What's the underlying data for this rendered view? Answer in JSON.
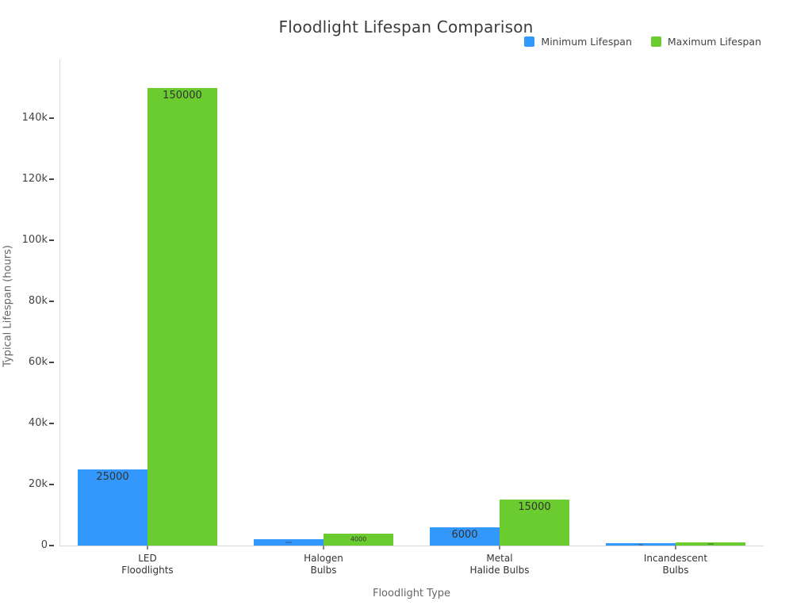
{
  "title": "Floodlight Lifespan Comparison",
  "chart_data": {
    "type": "bar",
    "title": "Floodlight Lifespan Comparison",
    "xlabel": "Floodlight Type",
    "ylabel": "Typical Lifespan (hours)",
    "categories": [
      "LED\nFloodlights",
      "Halogen\nBulbs",
      "Metal\nHalide Bulbs",
      "Incandescent\nBulbs"
    ],
    "series": [
      {
        "name": "Minimum Lifespan",
        "color": "#3398FB",
        "values": [
          25000,
          2000,
          6000,
          750
        ],
        "labels": [
          "25000",
          "2000",
          "6000",
          "750"
        ]
      },
      {
        "name": "Maximum Lifespan",
        "color": "#6BCC30",
        "values": [
          150000,
          4000,
          15000,
          1000
        ],
        "labels": [
          "150000",
          "4000",
          "15000",
          "1000"
        ]
      }
    ],
    "ylim": [
      0,
      160000
    ],
    "yticks": [
      {
        "v": 0,
        "label": "0"
      },
      {
        "v": 20000,
        "label": "20k"
      },
      {
        "v": 40000,
        "label": "40k"
      },
      {
        "v": 60000,
        "label": "60k"
      },
      {
        "v": 80000,
        "label": "80k"
      },
      {
        "v": 100000,
        "label": "100k"
      },
      {
        "v": 120000,
        "label": "120k"
      },
      {
        "v": 140000,
        "label": "140k"
      }
    ],
    "grid": false,
    "legend_position": "top-right",
    "bar_label_position": "inside-top"
  },
  "colors": {
    "axis_line": "#d9d9d9",
    "tick_text": "#444444",
    "x_tick_mark": "#888888",
    "category_text": "#333333",
    "axis_title": "#666666",
    "title_text": "#3c3c3c",
    "bar_label": "#333333"
  }
}
